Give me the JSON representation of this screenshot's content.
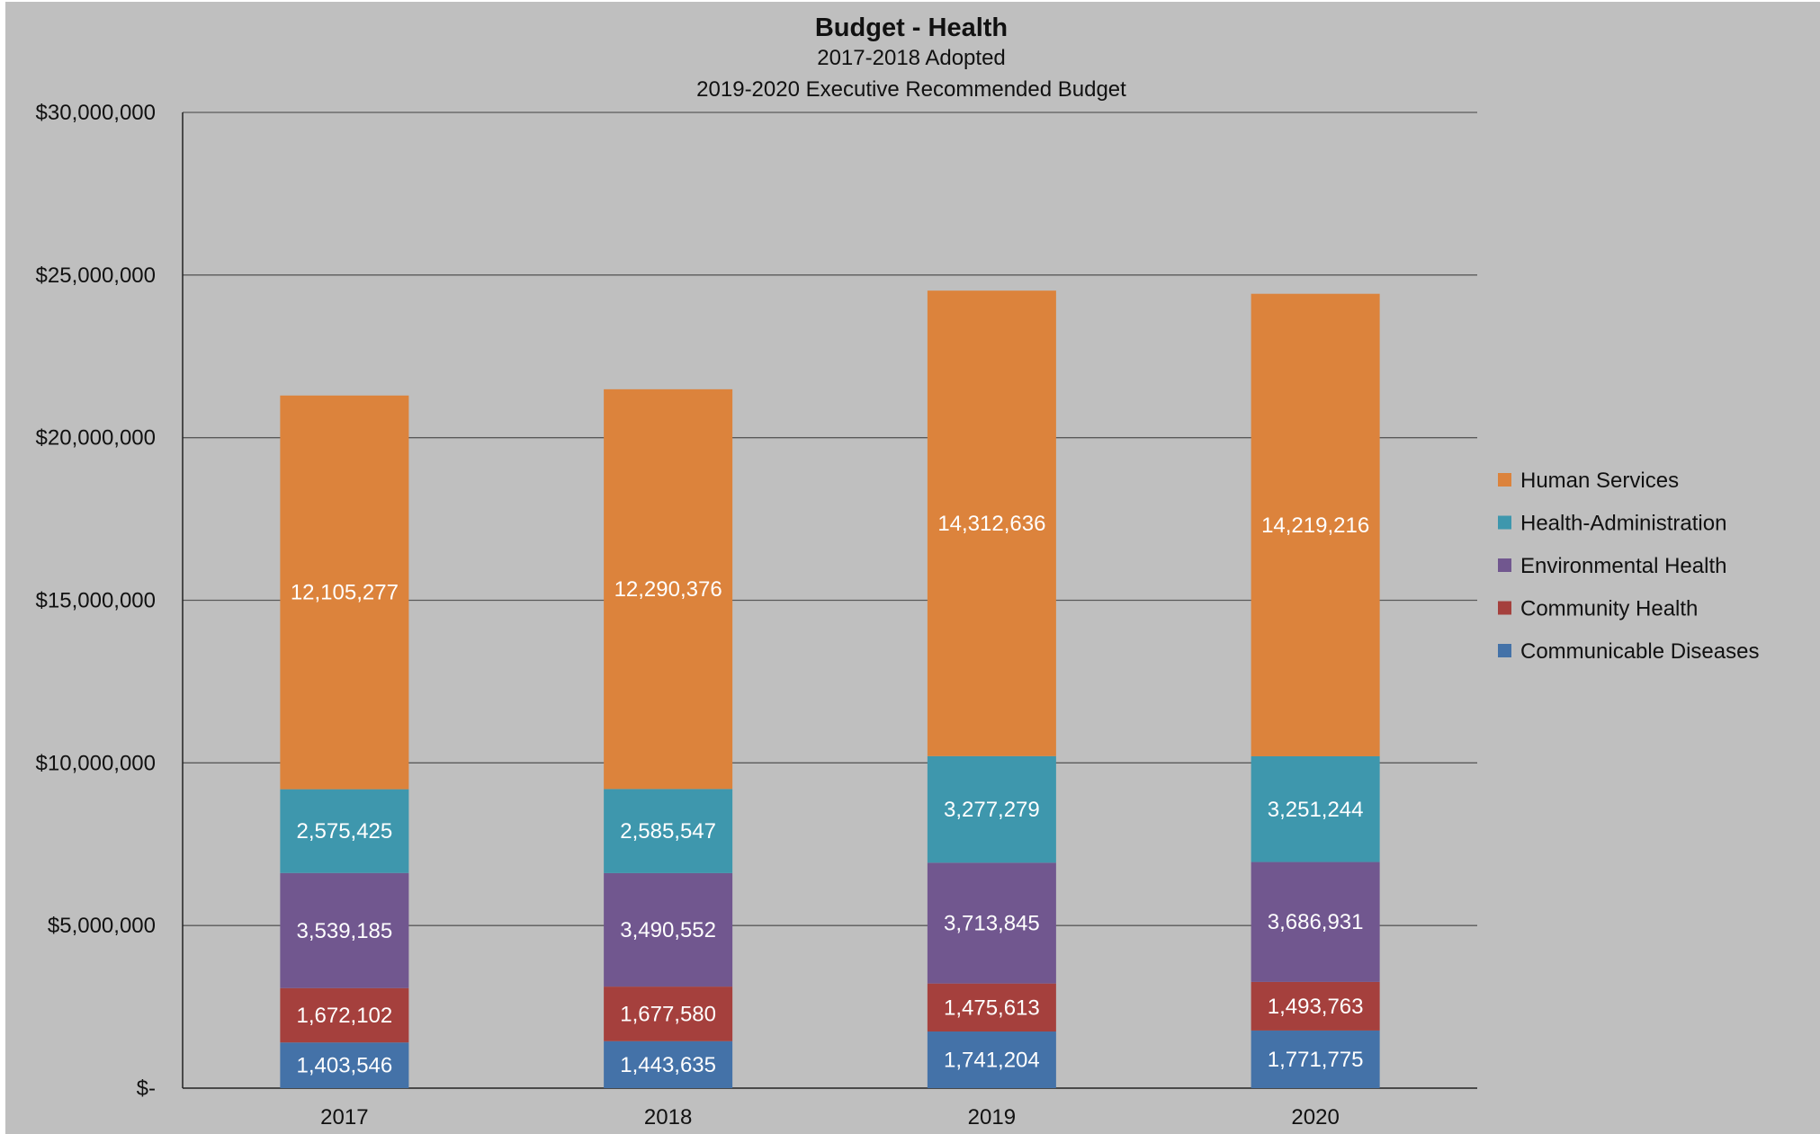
{
  "chart_data": {
    "type": "bar",
    "stacked": true,
    "title": "Budget - Health",
    "subtitles": [
      "2017-2018 Adopted",
      "2019-2020 Executive Recommended Budget"
    ],
    "categories": [
      "2017",
      "2018",
      "2019",
      "2020"
    ],
    "ylim": [
      0,
      30000000
    ],
    "y_ticks": [
      0,
      5000000,
      10000000,
      15000000,
      20000000,
      25000000,
      30000000
    ],
    "y_tick_labels": [
      "$-",
      "$5,000,000",
      "$10,000,000",
      "$15,000,000",
      "$20,000,000",
      "$25,000,000",
      "$30,000,000"
    ],
    "grid": true,
    "legend_position": "right",
    "series": [
      {
        "name": "Communicable Diseases",
        "color": "#4472a8",
        "values": [
          1403546,
          1443635,
          1741204,
          1771775
        ],
        "labels": [
          "1,403,546",
          "1,443,635",
          "1,741,204",
          "1,771,775"
        ]
      },
      {
        "name": "Community Health",
        "color": "#a5403d",
        "values": [
          1672102,
          1677580,
          1475613,
          1493763
        ],
        "labels": [
          "1,672,102",
          "1,677,580",
          "1,475,613",
          "1,493,763"
        ]
      },
      {
        "name": "Environmental Health",
        "color": "#71578f",
        "values": [
          3539185,
          3490552,
          3713845,
          3686931
        ],
        "labels": [
          "3,539,185",
          "3,490,552",
          "3,713,845",
          "3,686,931"
        ]
      },
      {
        "name": "Health-Administration",
        "color": "#3e97ad",
        "values": [
          2575425,
          2585547,
          3277279,
          3251244
        ],
        "labels": [
          "2,575,425",
          "2,585,547",
          "3,277,279",
          "3,251,244"
        ]
      },
      {
        "name": "Human Services",
        "color": "#dc833c",
        "values": [
          12105277,
          12290376,
          14312636,
          14219216
        ],
        "labels": [
          "12,105,277",
          "12,290,376",
          "14,312,636",
          "14,219,216"
        ]
      }
    ],
    "legend_order": [
      "Human Services",
      "Health-Administration",
      "Environmental Health",
      "Community Health",
      "Communicable Diseases"
    ]
  }
}
